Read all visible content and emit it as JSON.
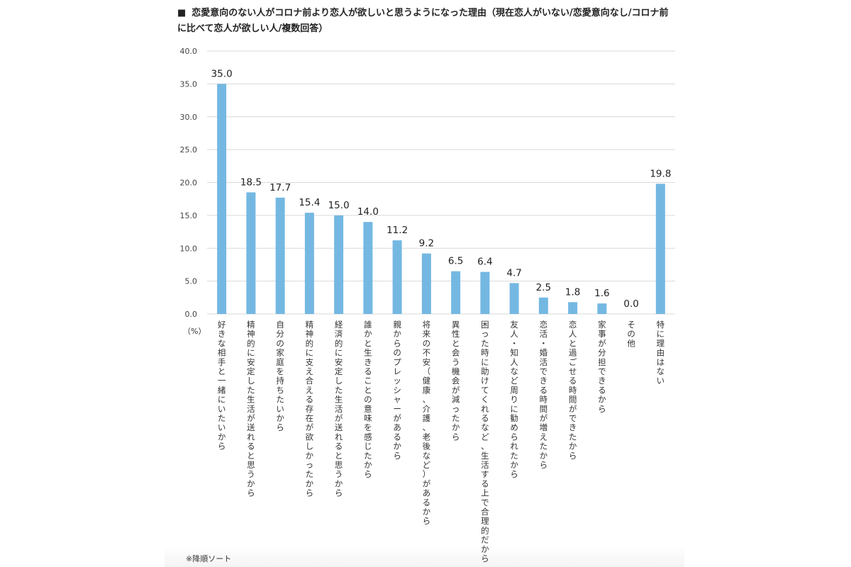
{
  "title_marker": "■",
  "title_line1": "恋愛意向のない人がコロナ前より恋人が欲しいと思うようになった理由（現在恋人がいない/恋愛意向なし/コロナ前",
  "title_line2": "に比べて恋人が欲しい人/複数回答）",
  "unit_label": "（%）",
  "note": "※降順ソート",
  "bar_color": "#74b8e2",
  "grid_color": "#d9d9d9",
  "chart_data": {
    "type": "bar",
    "title": "恋愛意向のない人がコロナ前より恋人が欲しいと思うようになった理由（現在恋人がいない/恋愛意向なし/コロナ前に比べて恋人が欲しい人/複数回答）",
    "ylabel": "（%）",
    "xlabel": "",
    "ylim": [
      0,
      40
    ],
    "yticks": [
      "0.0",
      "5.0",
      "10.0",
      "15.0",
      "20.0",
      "25.0",
      "30.0",
      "35.0",
      "40.0"
    ],
    "grid": true,
    "categories": [
      "好きな相手と一緒にいたいから",
      "精神的に安定した生活が送れると思うから",
      "自分の家庭を持ちたいから",
      "精神的に支え合える存在が欲しかったから",
      "経済的に安定した生活が送れると思うから",
      "誰かと生きることの意味を感じたから",
      "親からのプレッシャーがあるから",
      "将来の不安（健康、介護、老後など）があるから",
      "異性と会う機会が減ったから",
      "困った時に助けてくれるなど、生活する上で合理的だから",
      "友人・知人など周りに勧められたから",
      "恋活・婚活できる時間が増えたから",
      "恋人と過ごせる時間ができたから",
      "家事が分担できるから",
      "その他",
      "特に理由はない"
    ],
    "values": [
      35.0,
      18.5,
      17.7,
      15.4,
      15.0,
      14.0,
      11.2,
      9.2,
      6.5,
      6.4,
      4.7,
      2.5,
      1.8,
      1.6,
      0.0,
      19.8
    ],
    "value_labels": [
      "35.0",
      "18.5",
      "17.7",
      "15.4",
      "15.0",
      "14.0",
      "11.2",
      "9.2",
      "6.5",
      "6.4",
      "4.7",
      "2.5",
      "1.8",
      "1.6",
      "0.0",
      "19.8"
    ]
  }
}
